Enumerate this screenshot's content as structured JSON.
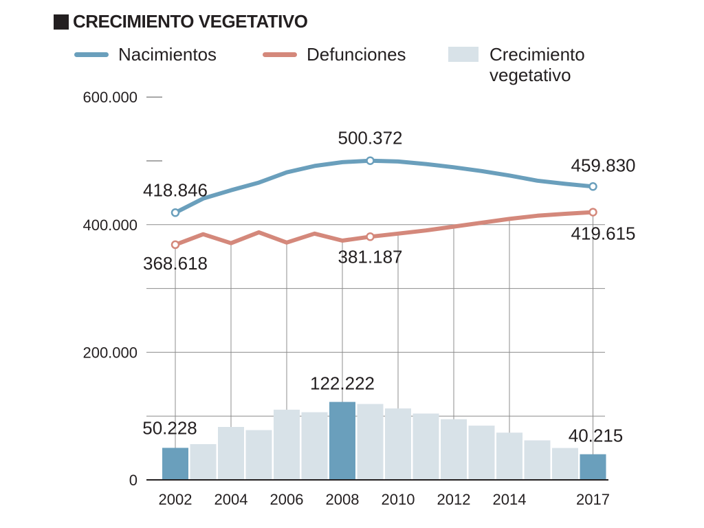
{
  "header": {
    "title": "CRECIMIENTO VEGETATIVO"
  },
  "legend": {
    "births": "Nacimientos",
    "deaths": "Defunciones",
    "growth": "Crecimiento vegetativo"
  },
  "colors": {
    "births": "#6a9fbc",
    "deaths": "#d4887b",
    "growth": "#d8e2e8",
    "growth_highlight": "#6a9fbc",
    "grid": "#8c8c8c",
    "text": "#231f20"
  },
  "chart_data": {
    "type": "line",
    "title": "CRECIMIENTO VEGETATIVO",
    "xlabel": "",
    "ylabel": "",
    "ylim": [
      0,
      600000
    ],
    "grid": true,
    "legend_position": "top",
    "x": [
      2002,
      2003,
      2004,
      2005,
      2006,
      2007,
      2008,
      2009,
      2010,
      2011,
      2012,
      2013,
      2014,
      2015,
      2016,
      2017
    ],
    "x_tick_labels": [
      "2002",
      "2004",
      "2006",
      "2008",
      "2010",
      "2012",
      "2014",
      "2017"
    ],
    "x_tick_years": [
      2002,
      2004,
      2006,
      2008,
      2010,
      2012,
      2014,
      2017
    ],
    "y_tick_labels": [
      {
        "value": 0,
        "label": "0"
      },
      {
        "value": 200000,
        "label": "200.000"
      },
      {
        "value": 400000,
        "label": "400.000"
      },
      {
        "value": 600000,
        "label": "600.000"
      }
    ],
    "series": [
      {
        "name": "Nacimientos",
        "kind": "line",
        "values": [
          418846,
          441000,
          454000,
          466000,
          482000,
          492000,
          498000,
          500372,
          499000,
          495000,
          490000,
          484000,
          477000,
          469000,
          464000,
          459830
        ]
      },
      {
        "name": "Defunciones",
        "kind": "line",
        "values": [
          368618,
          385000,
          371000,
          388000,
          372000,
          386000,
          375000,
          381187,
          386000,
          391000,
          397000,
          403000,
          409000,
          414000,
          417000,
          419615
        ]
      },
      {
        "name": "Crecimiento vegetativo",
        "kind": "bar",
        "values": [
          50228,
          56000,
          83000,
          78000,
          110000,
          106000,
          122222,
          119000,
          112000,
          104000,
          95000,
          85000,
          74000,
          62000,
          50000,
          40215
        ]
      }
    ],
    "annotations": [
      {
        "series": 0,
        "index": 0,
        "label": "418.846"
      },
      {
        "series": 0,
        "index": 7,
        "label": "500.372"
      },
      {
        "series": 0,
        "index": 15,
        "label": "459.830"
      },
      {
        "series": 1,
        "index": 0,
        "label": "368.618"
      },
      {
        "series": 1,
        "index": 7,
        "label": "381.187"
      },
      {
        "series": 1,
        "index": 15,
        "label": "419.615"
      },
      {
        "series": 2,
        "index": 0,
        "label": "50.228"
      },
      {
        "series": 2,
        "index": 6,
        "label": "122.222"
      },
      {
        "series": 2,
        "index": 15,
        "label": "40.215"
      }
    ],
    "highlighted_bars": [
      0,
      6,
      15
    ]
  }
}
